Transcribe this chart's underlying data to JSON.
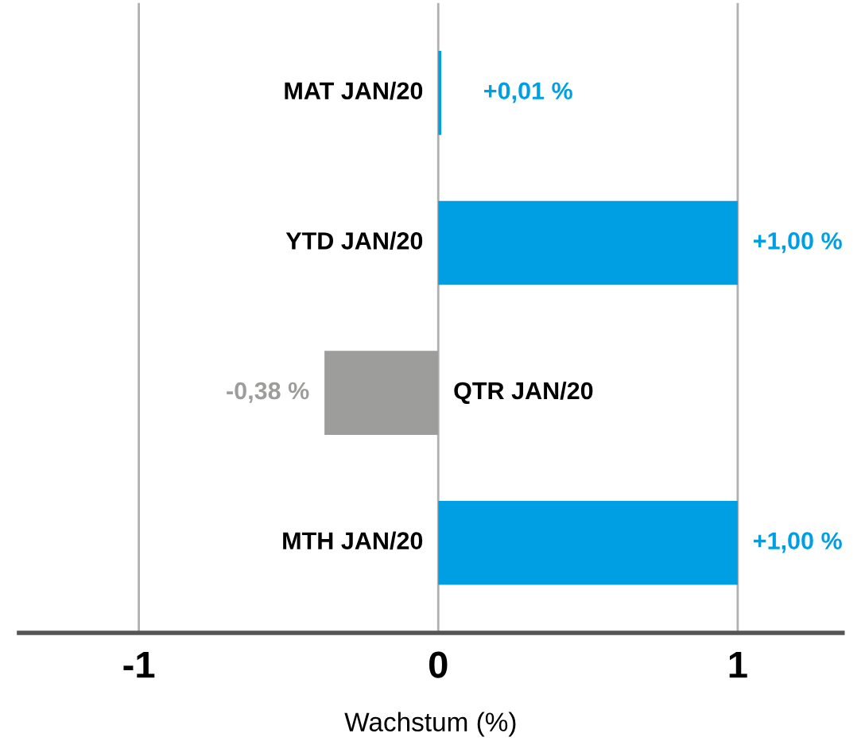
{
  "chart_data": {
    "type": "bar",
    "orientation": "horizontal",
    "categories": [
      "MAT JAN/20",
      "YTD JAN/20",
      "QTR JAN/20",
      "MTH JAN/20"
    ],
    "values": [
      0.01,
      1.0,
      -0.38,
      1.0
    ],
    "colors": [
      "#009fe3",
      "#009fe3",
      "#9d9d9c",
      "#009fe3"
    ],
    "value_labels": [
      "+0,01 %",
      "+1,00 %",
      "-0,38 %",
      "+1,00 %"
    ],
    "xlim": [
      -1.4,
      1.35
    ],
    "xticks": [
      -1,
      0,
      1
    ],
    "xlabel": "Wachstum (%)",
    "grid": "x"
  }
}
